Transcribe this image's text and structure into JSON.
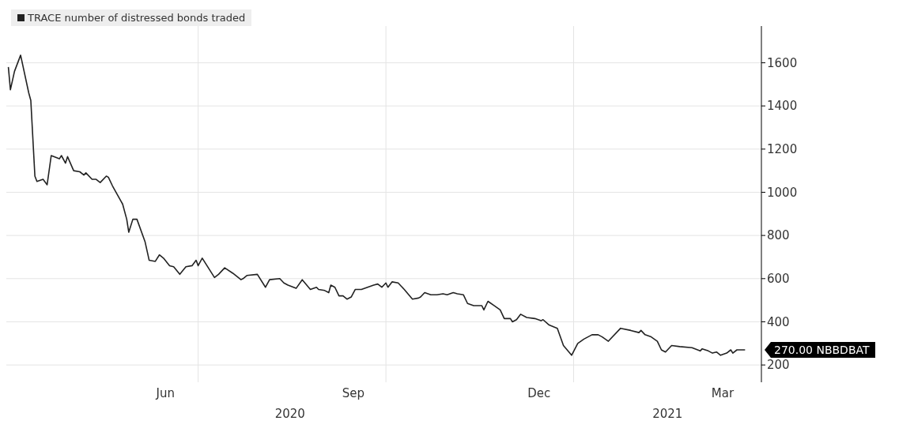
{
  "chart_data": {
    "type": "line",
    "x": [
      "2020-03-30",
      "2020-03-31",
      "2020-04-02",
      "2020-04-05",
      "2020-04-09",
      "2020-04-10",
      "2020-04-12",
      "2020-04-13",
      "2020-04-16",
      "2020-04-18",
      "2020-04-20",
      "2020-04-24",
      "2020-04-25",
      "2020-04-27",
      "2020-04-28",
      "2020-05-01",
      "2020-05-04",
      "2020-05-06",
      "2020-05-07",
      "2020-05-10",
      "2020-05-12",
      "2020-05-14",
      "2020-05-17",
      "2020-05-18",
      "2020-05-20",
      "2020-05-25",
      "2020-05-27",
      "2020-05-28",
      "2020-05-30",
      "2020-06-01",
      "2020-06-05",
      "2020-06-07",
      "2020-06-10",
      "2020-06-12",
      "2020-06-14",
      "2020-06-17",
      "2020-06-19",
      "2020-06-22",
      "2020-06-25",
      "2020-06-28",
      "2020-06-30",
      "2020-07-01",
      "2020-07-03",
      "2020-07-06",
      "2020-07-09",
      "2020-07-11",
      "2020-07-14",
      "2020-07-18",
      "2020-07-22",
      "2020-07-23",
      "2020-07-25",
      "2020-07-30",
      "2020-08-03",
      "2020-08-05",
      "2020-08-10",
      "2020-08-12",
      "2020-08-14",
      "2020-08-18",
      "2020-08-21",
      "2020-08-25",
      "2020-08-28",
      "2020-08-29",
      "2020-09-01",
      "2020-09-03",
      "2020-09-04",
      "2020-09-06",
      "2020-09-08",
      "2020-09-10",
      "2020-09-12",
      "2020-09-14",
      "2020-09-16",
      "2020-09-19",
      "2020-09-22",
      "2020-09-25",
      "2020-09-27",
      "2020-09-29",
      "2020-10-01",
      "2020-10-02",
      "2020-10-04",
      "2020-10-07",
      "2020-10-10",
      "2020-10-14",
      "2020-10-17",
      "2020-10-18",
      "2020-10-20",
      "2020-10-23",
      "2020-10-26",
      "2020-10-29",
      "2020-10-31",
      "2020-11-03",
      "2020-11-05",
      "2020-11-08",
      "2020-11-10",
      "2020-11-13",
      "2020-11-17",
      "2020-11-18",
      "2020-11-20",
      "2020-11-23",
      "2020-11-26",
      "2020-11-28",
      "2020-12-01",
      "2020-12-02",
      "2020-12-04",
      "2020-12-06",
      "2020-12-09",
      "2020-12-13",
      "2020-12-16",
      "2020-12-17",
      "2020-12-20",
      "2020-12-24",
      "2020-12-27",
      "2020-12-31",
      "2021-01-03",
      "2021-01-06",
      "2021-01-10",
      "2021-01-13",
      "2021-01-15",
      "2021-01-18",
      "2021-01-24",
      "2021-01-29",
      "2021-02-02",
      "2021-02-03",
      "2021-02-05",
      "2021-02-08",
      "2021-02-11",
      "2021-02-13",
      "2021-02-15",
      "2021-02-18",
      "2021-02-22",
      "2021-02-28",
      "2021-03-04",
      "2021-03-05",
      "2021-03-08",
      "2021-03-10",
      "2021-03-12",
      "2021-03-14",
      "2021-03-17",
      "2021-03-19",
      "2021-03-20",
      "2021-03-22",
      "2021-03-26"
    ],
    "series": [
      {
        "name": "TRACE number of distressed bonds traded",
        "color": "#222222",
        "values": [
          1580,
          1475,
          1560,
          1635,
          1460,
          1425,
          1075,
          1050,
          1060,
          1035,
          1170,
          1155,
          1170,
          1135,
          1165,
          1100,
          1095,
          1080,
          1090,
          1060,
          1060,
          1045,
          1075,
          1070,
          1030,
          945,
          875,
          815,
          875,
          875,
          770,
          685,
          680,
          710,
          695,
          660,
          655,
          620,
          655,
          660,
          685,
          660,
          695,
          650,
          605,
          620,
          650,
          625,
          595,
          600,
          615,
          620,
          560,
          595,
          600,
          580,
          570,
          555,
          595,
          550,
          560,
          550,
          545,
          535,
          570,
          560,
          520,
          520,
          505,
          515,
          550,
          550,
          560,
          570,
          575,
          560,
          580,
          560,
          585,
          580,
          550,
          505,
          510,
          515,
          535,
          525,
          525,
          530,
          525,
          535,
          530,
          525,
          485,
          475,
          475,
          455,
          495,
          475,
          455,
          415,
          415,
          400,
          410,
          435,
          420,
          415,
          405,
          410,
          385,
          370,
          290,
          245,
          300,
          320,
          340,
          340,
          330,
          310,
          370,
          360,
          350,
          360,
          340,
          330,
          310,
          270,
          260,
          290,
          285,
          280,
          265,
          275,
          265,
          255,
          260,
          245,
          255,
          270,
          255,
          270,
          270
        ]
      }
    ],
    "ylim": [
      120,
      1770
    ],
    "yticks": [
      200,
      400,
      600,
      800,
      1000,
      1200,
      1400,
      1600
    ],
    "xlim": [
      "2020-03-29",
      "2021-04-03"
    ],
    "xticks": [
      {
        "value": "2020-06-15",
        "label": "Jun"
      },
      {
        "value": "2020-07-01",
        "label": null
      },
      {
        "value": "2020-09-15",
        "label": "Sep"
      },
      {
        "value": "2020-10-01",
        "label": null
      },
      {
        "value": "2020-12-15",
        "label": "Dec"
      },
      {
        "value": "2021-01-01",
        "label": null
      },
      {
        "value": "2021-03-15",
        "label": "Mar"
      }
    ],
    "annotations": [
      "2020",
      "2021",
      {
        "text": "270.00 NBBDBAT",
        "x": "2021-03-26",
        "y": 270
      }
    ],
    "grid": true,
    "legend": "top left",
    "marker": "none",
    "line_style": "solid"
  }
}
